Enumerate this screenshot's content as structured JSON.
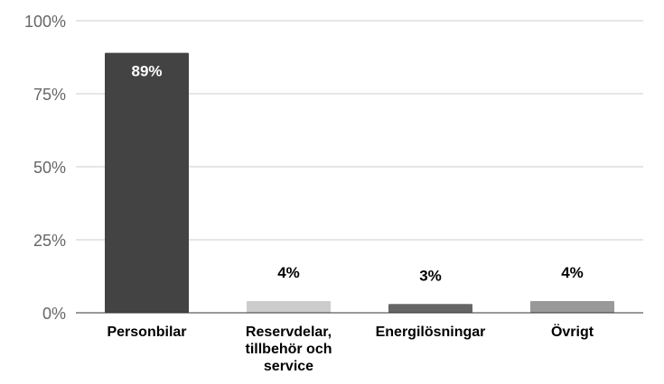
{
  "chart_data": {
    "type": "bar",
    "categories": [
      [
        "Personbilar"
      ],
      [
        "Reservdelar,",
        "tillbehör och",
        "service"
      ],
      [
        "Energilösningar"
      ],
      [
        "Övrigt"
      ]
    ],
    "values": [
      89,
      4,
      3,
      4
    ],
    "data_labels": [
      "89%",
      "4%",
      "3%",
      "4%"
    ],
    "bar_colors": [
      "#434343",
      "#cccccc",
      "#666666",
      "#999999"
    ],
    "data_label_colors": [
      "#ffffff",
      "#000000",
      "#000000",
      "#000000"
    ],
    "data_label_inside": [
      true,
      false,
      false,
      false
    ],
    "yticks": [
      0,
      25,
      50,
      75,
      100
    ],
    "ytick_labels": [
      "0%",
      "25%",
      "50%",
      "75%",
      "100%"
    ],
    "ylim": [
      0,
      100
    ],
    "grid": true,
    "title": "",
    "xlabel": "",
    "ylabel": ""
  }
}
